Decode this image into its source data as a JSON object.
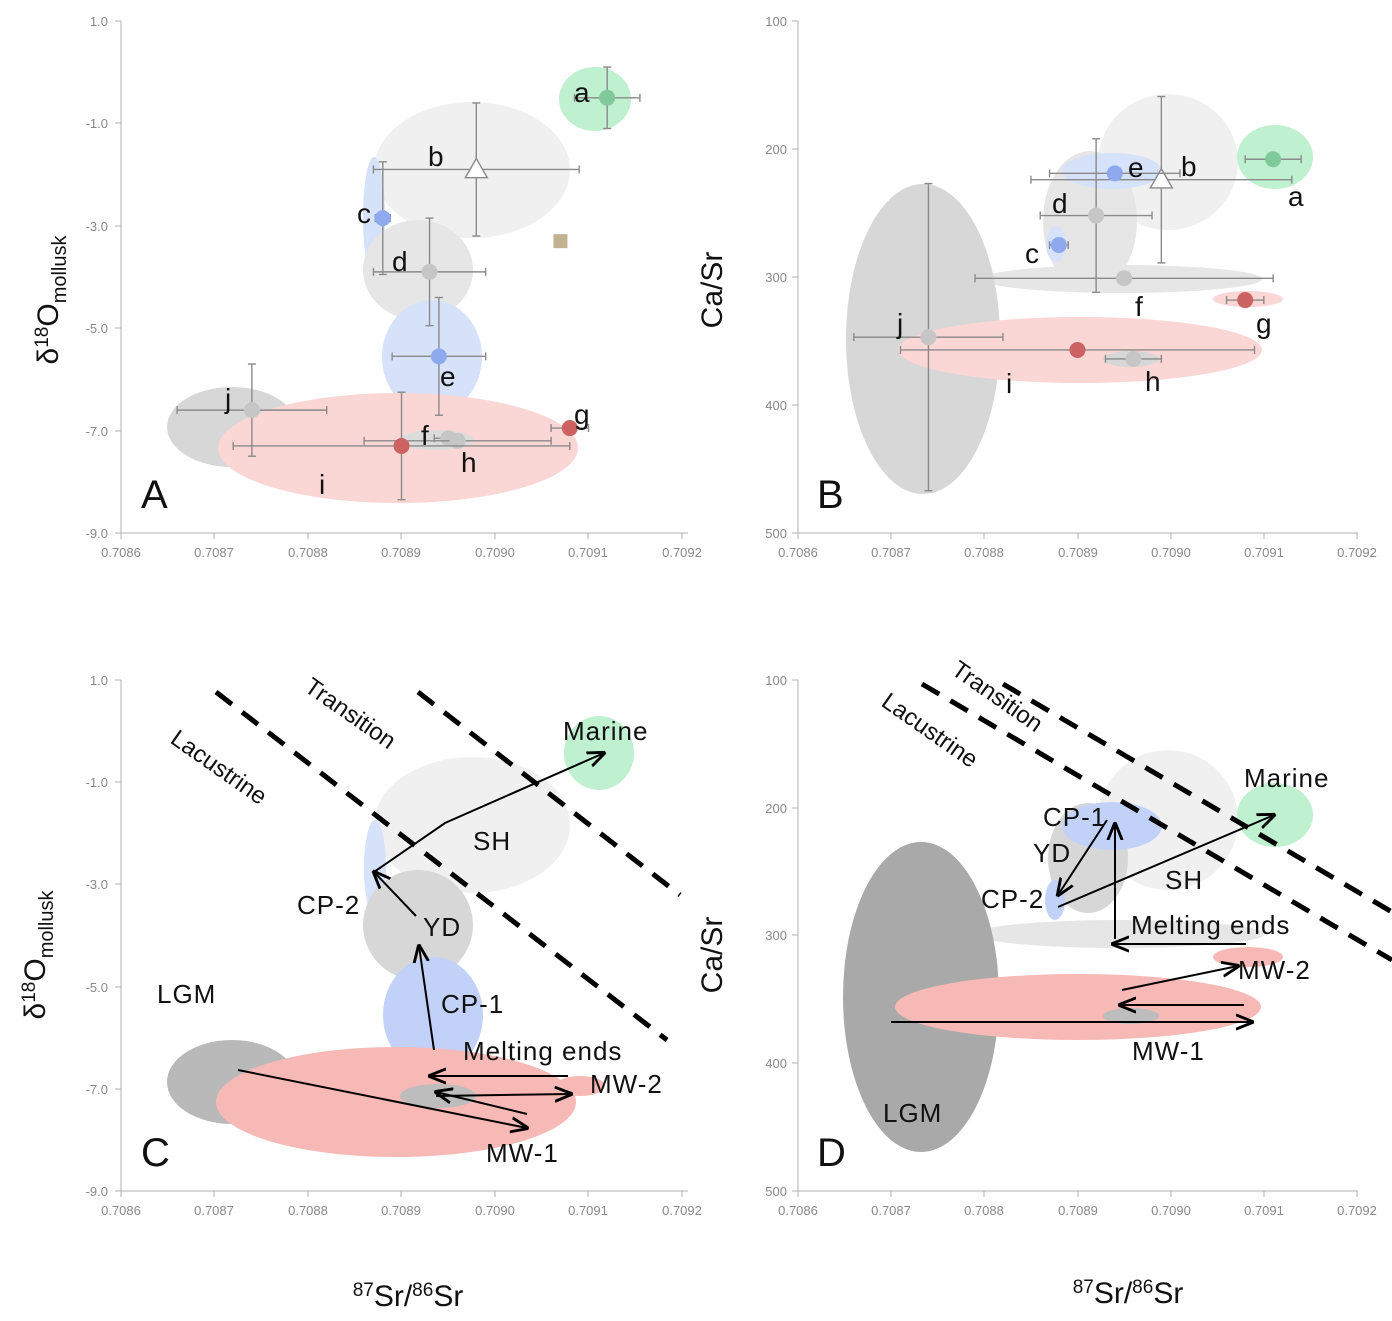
{
  "colors": {
    "green": "#8fe0a8",
    "blue": "#9ab4f0",
    "pink": "#f7a6a3",
    "grey": "#bdbdbd",
    "darkgrey": "#a9a9a9",
    "lightgrey": "#eeeeee",
    "pt_green": "#7fc99a",
    "pt_blue": "#8fa9ef",
    "pt_grey": "#c6c6c6",
    "pt_red": "#cc6262",
    "pt_tan": "#c2b292"
  },
  "axes": {
    "ylabel_left_main": "δ",
    "ylabel_left_sup": "18",
    "ylabel_left_rest": "O",
    "ylabel_left_sub": "mollusk",
    "ylabel_right": "Ca/Sr",
    "xlabel_sup1": "87",
    "xlabel_main1": "Sr/",
    "xlabel_sup2": "86",
    "xlabel_main2": "Sr",
    "x_ticks": [
      "0.7086",
      "0.7087",
      "0.7088",
      "0.7089",
      "0.7090",
      "0.7091",
      "0.7092"
    ],
    "d18o_ticks": [
      "1.0",
      "-1.0",
      "-3.0",
      "-5.0",
      "-7.0",
      "-9.0"
    ],
    "casr_ticks": [
      "100",
      "200",
      "300",
      "400",
      "500"
    ]
  },
  "chart_data": [
    {
      "panel": "A",
      "type": "scatter",
      "xlim": [
        0.7086,
        0.7092
      ],
      "ylim": [
        -9,
        1
      ],
      "points": [
        {
          "label": "a",
          "x": 0.70912,
          "y": -0.5,
          "xerr": 3.5e-05,
          "yerr": 0.6,
          "color": "green"
        },
        {
          "label": "b",
          "x": 0.70898,
          "y": -1.9,
          "xerr": 0.00011,
          "yerr": 1.3,
          "color": "white",
          "marker": "triangle"
        },
        {
          "label": "c",
          "x": 0.70888,
          "y": -2.85,
          "xerr": 8e-06,
          "yerr": 1.1,
          "color": "blue"
        },
        {
          "label": "d",
          "x": 0.70893,
          "y": -3.9,
          "xerr": 6e-05,
          "yerr": 1.05,
          "color": "grey"
        },
        {
          "label": "e",
          "x": 0.70894,
          "y": -5.55,
          "xerr": 5e-05,
          "yerr": 1.15,
          "color": "blue"
        },
        {
          "label": "f",
          "x": 0.70895,
          "y": -7.15,
          "xerr": 1.5e-05,
          "yerr": 0.05,
          "color": "grey"
        },
        {
          "label": "g",
          "x": 0.70908,
          "y": -6.95,
          "xerr": 2e-05,
          "yerr": 0.1,
          "color": "red"
        },
        {
          "label": "h",
          "x": 0.70896,
          "y": -7.2,
          "xerr": 0.0001,
          "yerr": 0.1,
          "color": "grey"
        },
        {
          "label": "i",
          "x": 0.7089,
          "y": -7.3,
          "xerr": 0.00018,
          "yerr": 1.05,
          "color": "red"
        },
        {
          "label": "j",
          "x": 0.70874,
          "y": -6.6,
          "xerr": 8e-05,
          "yerr": 0.9,
          "color": "grey"
        },
        {
          "label": "",
          "x": 0.70907,
          "y": -3.3,
          "color": "tan",
          "marker": "square"
        }
      ]
    },
    {
      "panel": "B",
      "type": "scatter",
      "xlim": [
        0.7086,
        0.7092
      ],
      "ylim": [
        500,
        100
      ],
      "points": [
        {
          "label": "a",
          "x": 0.70911,
          "y": 208,
          "xerr": 3e-05,
          "yerr": 0,
          "color": "green"
        },
        {
          "label": "b",
          "x": 0.70899,
          "y": 224,
          "xerr": 0.00014,
          "yerr": 65,
          "color": "white",
          "marker": "triangle"
        },
        {
          "label": "c",
          "x": 0.70888,
          "y": 275,
          "xerr": 1e-05,
          "yerr": 3,
          "color": "blue"
        },
        {
          "label": "d",
          "x": 0.70892,
          "y": 252,
          "xerr": 6e-05,
          "yerr": 60,
          "color": "grey"
        },
        {
          "label": "e",
          "x": 0.70894,
          "y": 219,
          "xerr": 7e-05,
          "yerr": 2,
          "color": "blue"
        },
        {
          "label": "f",
          "x": 0.70895,
          "y": 301,
          "xerr": 0.00016,
          "yerr": 0,
          "color": "grey"
        },
        {
          "label": "g",
          "x": 0.70908,
          "y": 318,
          "xerr": 2e-05,
          "yerr": 0,
          "color": "red"
        },
        {
          "label": "h",
          "x": 0.70896,
          "y": 364,
          "xerr": 3e-05,
          "yerr": 0,
          "color": "grey"
        },
        {
          "label": "i",
          "x": 0.7089,
          "y": 357,
          "xerr": 0.00019,
          "yerr": 0,
          "color": "red"
        },
        {
          "label": "j",
          "x": 0.70874,
          "y": 347,
          "xerr": 8e-05,
          "yerr": 120,
          "color": "grey"
        }
      ]
    },
    {
      "panel": "C",
      "type": "scatter",
      "xlim": [
        0.7086,
        0.7092
      ],
      "ylim": [
        -9,
        1
      ],
      "zones": [
        "Lacustrine",
        "Transition"
      ],
      "regions": [
        "Marine",
        "SH",
        "CP-2",
        "YD",
        "LGM",
        "CP-1",
        "Melting ends",
        "MW-2",
        "MW-1"
      ]
    },
    {
      "panel": "D",
      "type": "scatter",
      "xlim": [
        0.7086,
        0.7092
      ],
      "ylim": [
        500,
        100
      ],
      "zones": [
        "Lacustrine",
        "Transition"
      ],
      "regions": [
        "Marine",
        "CP-1",
        "YD",
        "SH",
        "CP-2",
        "Melting ends",
        "MW-2",
        "MW-1",
        "LGM"
      ]
    }
  ]
}
